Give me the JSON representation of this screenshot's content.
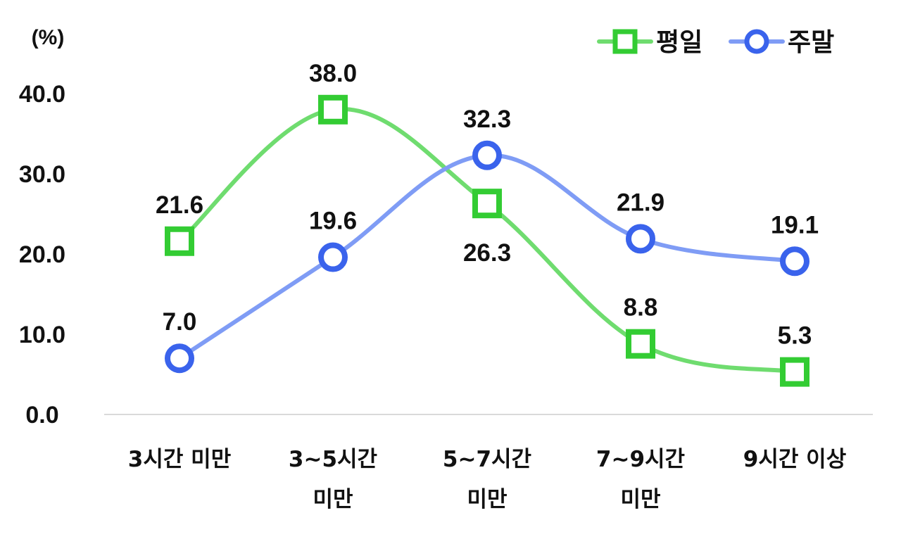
{
  "chart_data": {
    "type": "line",
    "unit_label": "(%)",
    "categories": [
      [
        "3시간 미만"
      ],
      [
        "3~5시간",
        "미만"
      ],
      [
        "5~7시간",
        "미만"
      ],
      [
        "7~9시간",
        "미만"
      ],
      [
        "9시간 이상"
      ]
    ],
    "ylim": [
      0,
      40
    ],
    "yticks": [
      "0.0",
      "10.0",
      "20.0",
      "30.0",
      "40.0"
    ],
    "ytick_values": [
      0,
      10,
      20,
      30,
      40
    ],
    "grid": false,
    "legend_position": "top-right",
    "series": [
      {
        "name": "평일",
        "values": [
          21.6,
          38.0,
          26.3,
          8.8,
          5.3
        ],
        "labels": [
          "21.6",
          "38.0",
          "26.3",
          "8.8",
          "5.3"
        ],
        "label_side": [
          "above",
          "above",
          "below",
          "above",
          "above"
        ],
        "marker": "square",
        "line_color": "#6fdc6f",
        "marker_color": "#33cc33"
      },
      {
        "name": "주말",
        "values": [
          7.0,
          19.6,
          32.3,
          21.9,
          19.1
        ],
        "labels": [
          "7.0",
          "19.6",
          "32.3",
          "21.9",
          "19.1"
        ],
        "label_side": [
          "above",
          "above",
          "above",
          "above",
          "above"
        ],
        "marker": "circle",
        "line_color": "#7f9cf5",
        "marker_color": "#3a63ec"
      }
    ]
  }
}
